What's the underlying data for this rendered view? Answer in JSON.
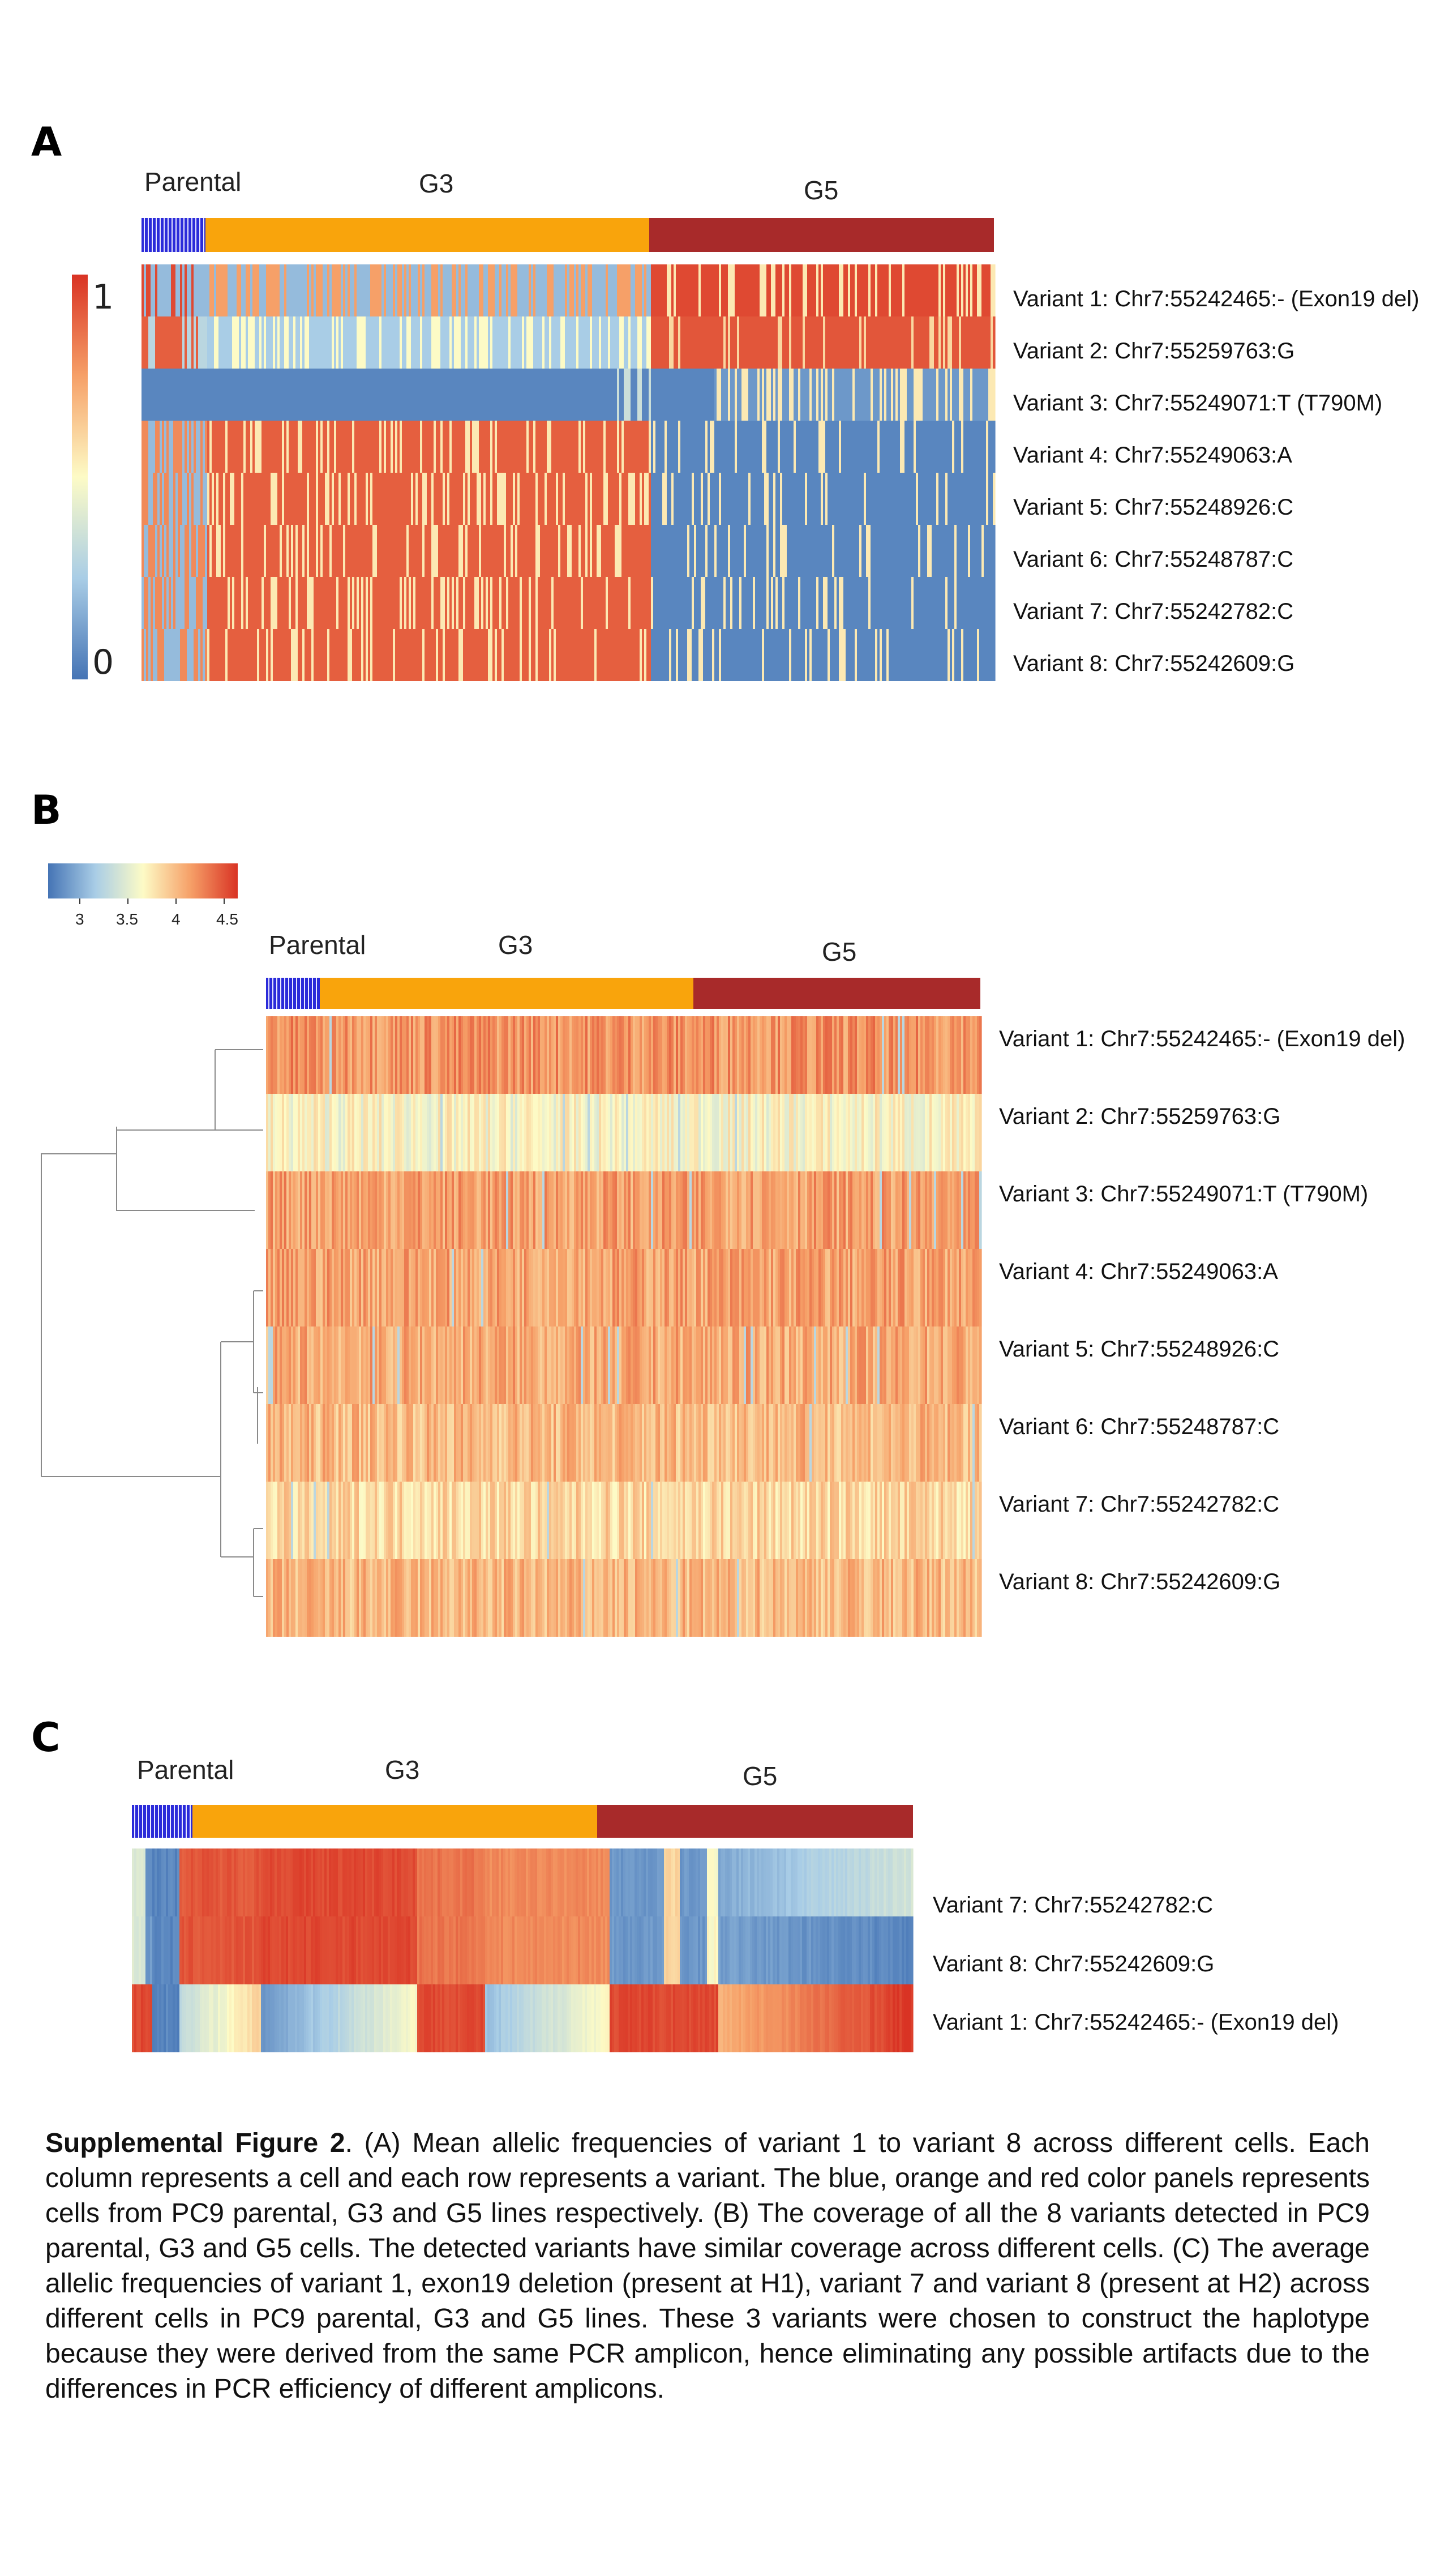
{
  "panels": [
    {
      "letter": "A",
      "groups": [
        "Parental",
        "G3",
        "G5"
      ],
      "color_scale": {
        "max_label": "1",
        "min_label": "0"
      },
      "rows": [
        "Variant 1: Chr7:55242465:- (Exon19 del)",
        "Variant 2: Chr7:55259763:G",
        "Variant 3: Chr7:55249071:T (T790M)",
        "Variant 4: Chr7:55249063:A",
        "Variant 5: Chr7:55248926:C",
        "Variant 6: Chr7:55248787:C",
        "Variant 7: Chr7:55242782:C",
        "Variant 8: Chr7:55242609:G"
      ]
    },
    {
      "letter": "B",
      "groups": [
        "Parental",
        "G3",
        "G5"
      ],
      "color_scale": {
        "ticks": [
          "3",
          "3.5",
          "4",
          "4.5"
        ]
      },
      "rows": [
        "Variant 1: Chr7:55242465:- (Exon19 del)",
        "Variant 2: Chr7:55259763:G",
        "Variant 3: Chr7:55249071:T (T790M)",
        "Variant 4: Chr7:55249063:A",
        "Variant 5: Chr7:55248926:C",
        "Variant 6: Chr7:55248787:C",
        "Variant 7: Chr7:55242782:C",
        "Variant 8: Chr7:55242609:G"
      ]
    },
    {
      "letter": "C",
      "groups": [
        "Parental",
        "G3",
        "G5"
      ],
      "rows": [
        "Variant 7: Chr7:55242782:C",
        "Variant 8: Chr7:55242609:G",
        "Variant 1: Chr7:55242465:- (Exon19 del)"
      ]
    }
  ],
  "colors": {
    "parental": "#2b2bd9",
    "g3": "#f9a40c",
    "g5": "#a82a2a",
    "low": "#4574b5",
    "mid": "#fdfbc6",
    "high": "#d93324"
  },
  "caption": {
    "title": "Supplemental Figure 2",
    "body": ". (A) Mean allelic frequencies of variant 1 to variant 8 across different cells. Each column represents a cell and each row represents a variant. The blue, orange and red color panels represents cells from PC9 parental, G3 and G5 lines respectively. (B) The coverage of all the 8 variants detected in PC9 parental, G3 and G5 cells. The detected variants have similar coverage across different cells. (C) The average allelic frequencies of variant 1, exon19 deletion (present at H1), variant 7 and variant 8 (present at H2) across different cells in PC9 parental, G3 and G5 lines. These 3 variants were chosen to construct the haplotype because they were derived from the same PCR amplicon, hence eliminating any possible artifacts due to the differences in PCR efficiency of different amplicons."
  }
}
